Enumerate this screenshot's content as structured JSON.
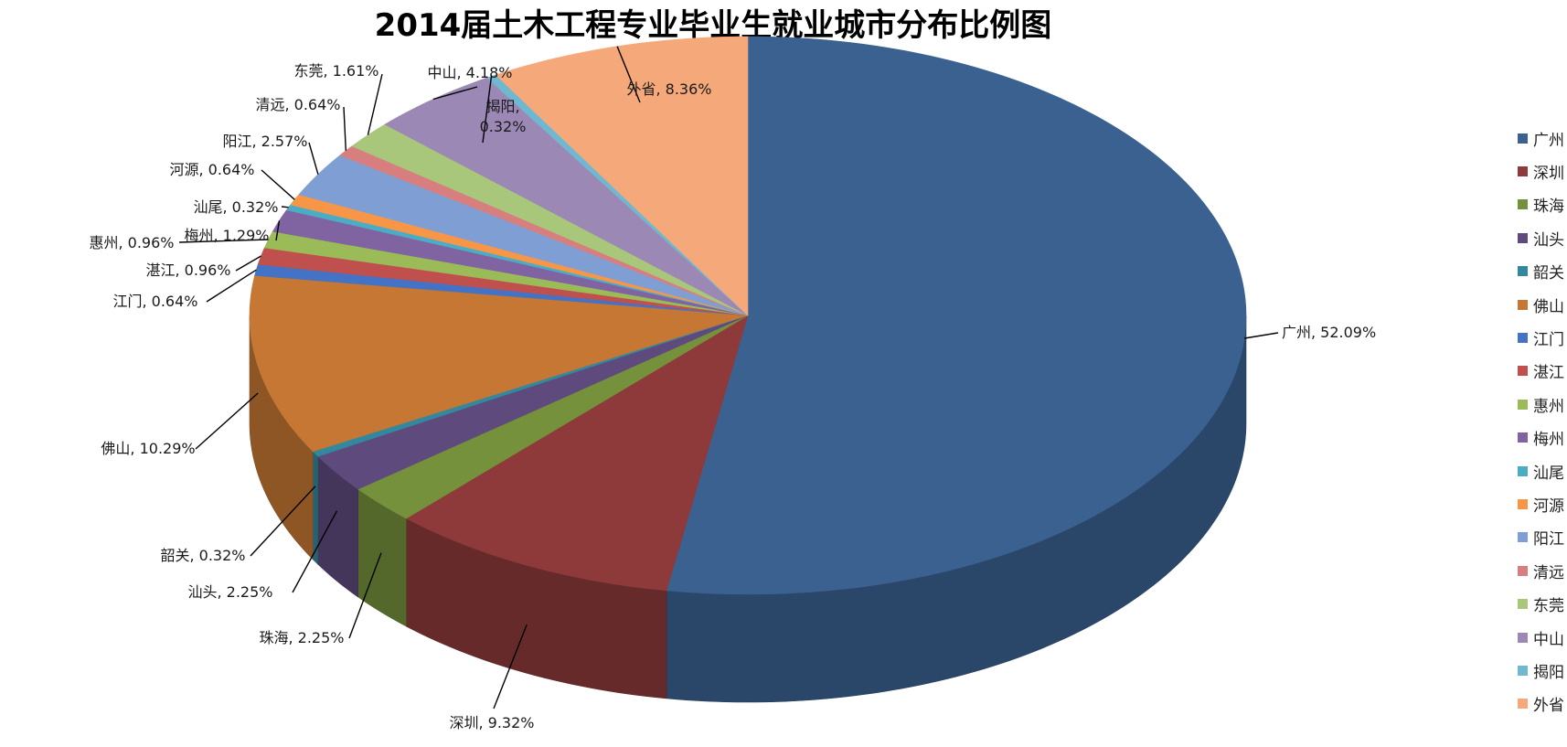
{
  "chart_data": {
    "type": "pie",
    "title": "2014届土木工程专业毕业生就业城市分布比例图",
    "legend_position": "right",
    "categories": [
      "广州",
      "深圳",
      "珠海",
      "汕头",
      "韶关",
      "佛山",
      "江门",
      "湛江",
      "惠州",
      "梅州",
      "汕尾",
      "河源",
      "阳江",
      "清远",
      "东莞",
      "中山",
      "揭阳",
      "外省"
    ],
    "values": [
      52.09,
      9.32,
      2.25,
      2.25,
      0.32,
      10.29,
      0.64,
      0.96,
      0.96,
      1.29,
      0.32,
      0.64,
      2.57,
      0.64,
      1.61,
      4.18,
      0.32,
      8.36
    ],
    "value_labels": [
      "52.09%",
      "9.32%",
      "2.25%",
      "2.25%",
      "0.32%",
      "10.29%",
      "0.64%",
      "0.96%",
      "0.96%",
      "1.29%",
      "0.32%",
      "0.64%",
      "2.57%",
      "0.64%",
      "1.61%",
      "4.18%",
      "0.32%",
      "8.36%"
    ],
    "colors": [
      "#3A6190",
      "#8E3A3A",
      "#76913C",
      "#5F4A7E",
      "#33889E",
      "#C57733",
      "#4472C4",
      "#C0504D",
      "#9BBB59",
      "#8064A2",
      "#4BACC6",
      "#F79646",
      "#7F9FD4",
      "#D77F7E",
      "#A9C77B",
      "#9B88B5",
      "#70B8D0",
      "#F5A97A"
    ]
  }
}
